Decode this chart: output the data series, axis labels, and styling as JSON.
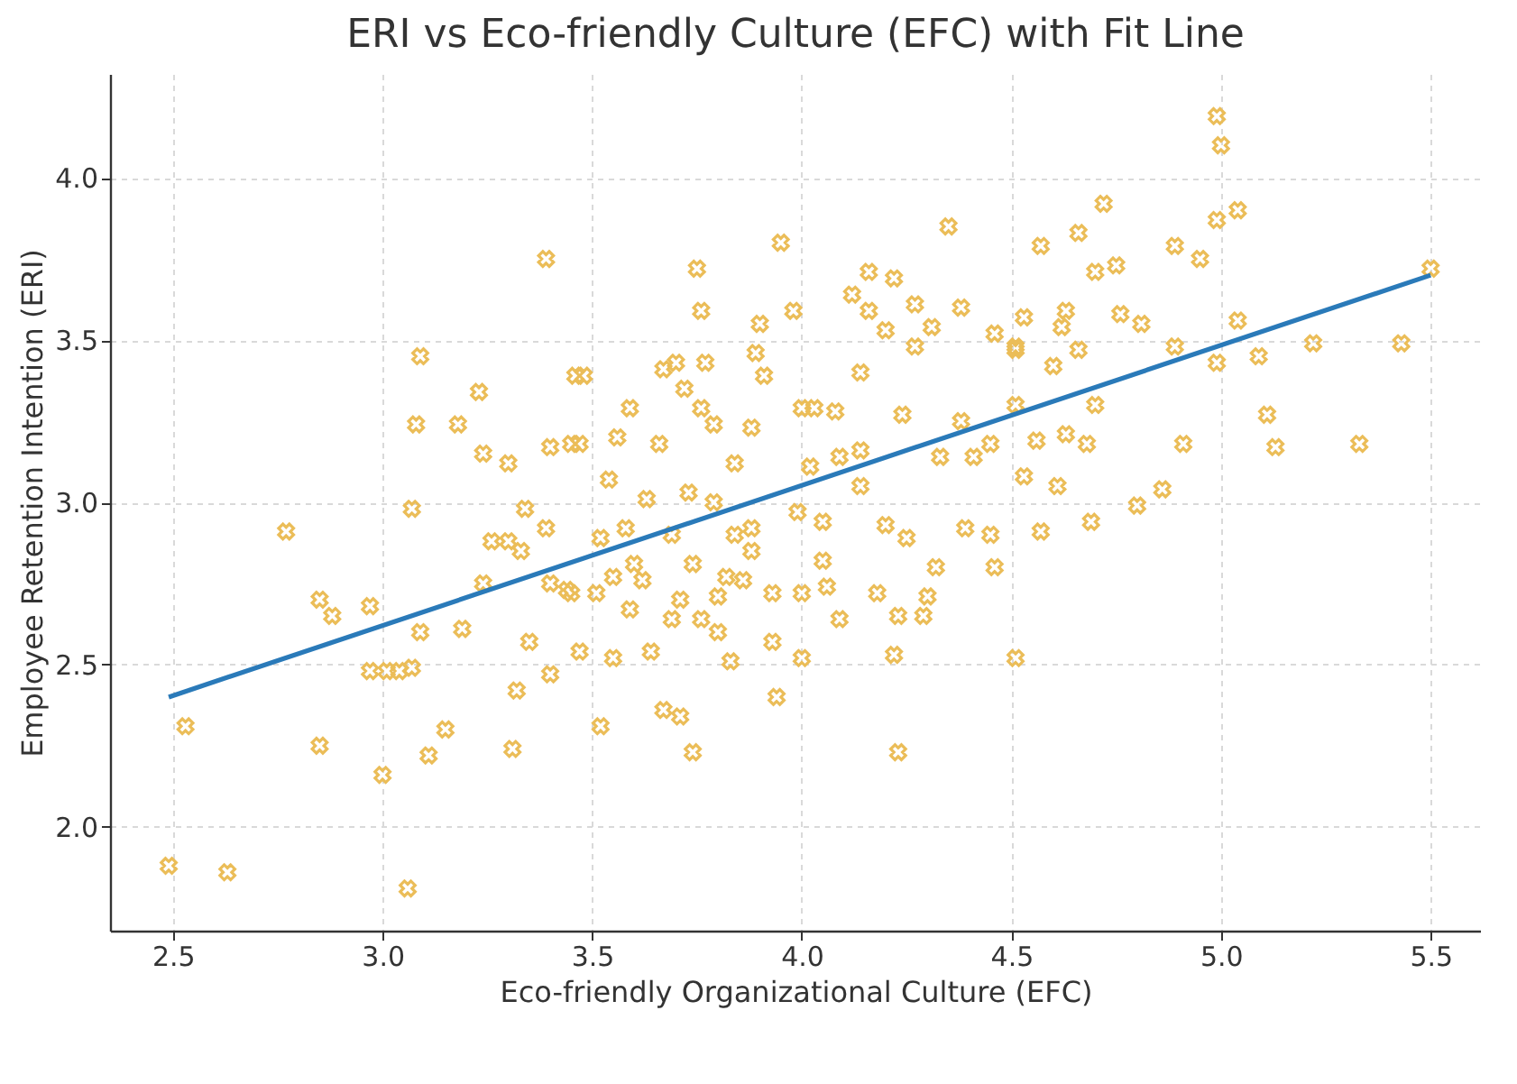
{
  "chart_data": {
    "type": "scatter",
    "title": "ERI vs Eco-friendly Culture (EFC) with Fit Line",
    "xlabel": "Eco-friendly Organizational Culture (EFC)",
    "ylabel": "Employee Retention Intention (ERI)",
    "xlim": [
      2.35,
      5.62
    ],
    "ylim": [
      1.68,
      4.32
    ],
    "xticks": [
      2.5,
      {
        "value": 3,
        "label": "3.0"
      },
      3.5,
      {
        "value": 4,
        "label": "4.0"
      },
      4.5,
      {
        "value": 5,
        "label": "5.0"
      },
      5.5
    ],
    "yticks": [
      {
        "value": 2,
        "label": "2.0"
      },
      2.5,
      {
        "value": 3,
        "label": "3.0"
      },
      3.5,
      {
        "value": 4,
        "label": "4.0"
      }
    ],
    "grid": true,
    "series": [
      {
        "marker": "cross",
        "color": "#ebbd58",
        "x": [
          2.49,
          2.63,
          3.06,
          2.53,
          2.85,
          3.0,
          3.11,
          3.15,
          3.31,
          3.32,
          3.4,
          3.35,
          2.97,
          3.01,
          3.04,
          3.07,
          3.09,
          3.19,
          2.85,
          2.88,
          2.97,
          2.77,
          3.07,
          3.24,
          3.26,
          3.3,
          3.33,
          3.34,
          3.39,
          3.4,
          3.45,
          3.39,
          3.09,
          3.23,
          3.08,
          3.18,
          3.24,
          3.3,
          3.4,
          3.45,
          3.46,
          3.75,
          3.76,
          3.95,
          3.98,
          3.9,
          4.35,
          4.16,
          4.22,
          4.12,
          4.27,
          4.16,
          4.38,
          4.2,
          4.31,
          4.27,
          4.46,
          4.51,
          3.48,
          3.67,
          3.7,
          3.77,
          3.89,
          3.91,
          4.14,
          3.72,
          3.59,
          3.76,
          3.79,
          4.0,
          4.03,
          4.08,
          4.24,
          4.51,
          3.47,
          3.56,
          3.66,
          3.88,
          3.84,
          3.54,
          4.02,
          4.09,
          4.14,
          4.38,
          4.33,
          4.41,
          4.45,
          4.99,
          5.0,
          4.72,
          4.99,
          5.04,
          4.66,
          4.57,
          4.89,
          4.95,
          4.7,
          4.75,
          5.5,
          4.53,
          4.63,
          4.62,
          4.76,
          4.81,
          5.04,
          4.51,
          4.6,
          4.66,
          4.89,
          4.99,
          5.09,
          5.22,
          5.43,
          4.7,
          5.11,
          4.56,
          4.63,
          4.68,
          4.91,
          5.13,
          5.33,
          4.53,
          4.61,
          4.86,
          3.63,
          3.73,
          3.79,
          3.58,
          3.52,
          3.69,
          3.74,
          3.84,
          3.88,
          3.88,
          3.99,
          4.05,
          4.14,
          4.2,
          4.25,
          4.05,
          3.6,
          3.62,
          3.55,
          3.44,
          3.51,
          3.59,
          3.71,
          3.69,
          3.76,
          3.8,
          3.82,
          3.86,
          3.8,
          3.93,
          4.0,
          4.06,
          4.09,
          4.18,
          4.23,
          4.29,
          4.3,
          4.32,
          4.39,
          4.45,
          4.46,
          3.47,
          3.55,
          3.64,
          3.83,
          3.93,
          4.0,
          4.22,
          4.51,
          3.94,
          3.52,
          3.67,
          3.71,
          3.74,
          4.23,
          4.8,
          4.57,
          4.69
        ],
        "values": [
          1.88,
          1.86,
          1.81,
          2.31,
          2.25,
          2.16,
          2.22,
          2.3,
          2.24,
          2.42,
          2.47,
          2.57,
          2.48,
          2.48,
          2.48,
          2.49,
          2.6,
          2.61,
          2.7,
          2.65,
          2.68,
          2.91,
          2.98,
          2.75,
          2.88,
          2.88,
          2.85,
          2.98,
          2.92,
          2.75,
          2.72,
          3.75,
          3.45,
          3.34,
          3.24,
          3.24,
          3.15,
          3.12,
          3.17,
          3.18,
          3.39,
          3.72,
          3.59,
          3.8,
          3.59,
          3.55,
          3.85,
          3.71,
          3.69,
          3.64,
          3.61,
          3.59,
          3.6,
          3.53,
          3.54,
          3.48,
          3.52,
          3.48,
          3.39,
          3.41,
          3.43,
          3.43,
          3.46,
          3.39,
          3.4,
          3.35,
          3.29,
          3.29,
          3.24,
          3.29,
          3.29,
          3.28,
          3.27,
          3.3,
          3.18,
          3.2,
          3.18,
          3.23,
          3.12,
          3.07,
          3.11,
          3.14,
          3.16,
          3.25,
          3.14,
          3.14,
          3.18,
          4.19,
          4.1,
          3.92,
          3.87,
          3.9,
          3.83,
          3.79,
          3.79,
          3.75,
          3.71,
          3.73,
          3.72,
          3.57,
          3.59,
          3.54,
          3.58,
          3.55,
          3.56,
          3.47,
          3.42,
          3.47,
          3.48,
          3.43,
          3.45,
          3.49,
          3.49,
          3.3,
          3.27,
          3.19,
          3.21,
          3.18,
          3.18,
          3.17,
          3.18,
          3.08,
          3.05,
          3.04,
          3.01,
          3.03,
          3.0,
          2.92,
          2.89,
          2.9,
          2.81,
          2.9,
          2.92,
          2.85,
          2.97,
          2.94,
          3.05,
          2.93,
          2.89,
          2.82,
          2.81,
          2.76,
          2.77,
          2.73,
          2.72,
          2.67,
          2.7,
          2.64,
          2.64,
          2.6,
          2.77,
          2.76,
          2.71,
          2.72,
          2.72,
          2.74,
          2.64,
          2.72,
          2.65,
          2.65,
          2.71,
          2.8,
          2.92,
          2.9,
          2.8,
          2.54,
          2.52,
          2.54,
          2.51,
          2.57,
          2.52,
          2.53,
          2.52,
          2.4,
          2.31,
          2.36,
          2.34,
          2.23,
          2.23,
          2.99,
          2.91,
          2.94
        ]
      },
      {
        "type": "line",
        "color": "#2a7ab9",
        "x": [
          2.49,
          5.5
        ],
        "values": [
          2.4,
          3.7
        ]
      }
    ]
  }
}
